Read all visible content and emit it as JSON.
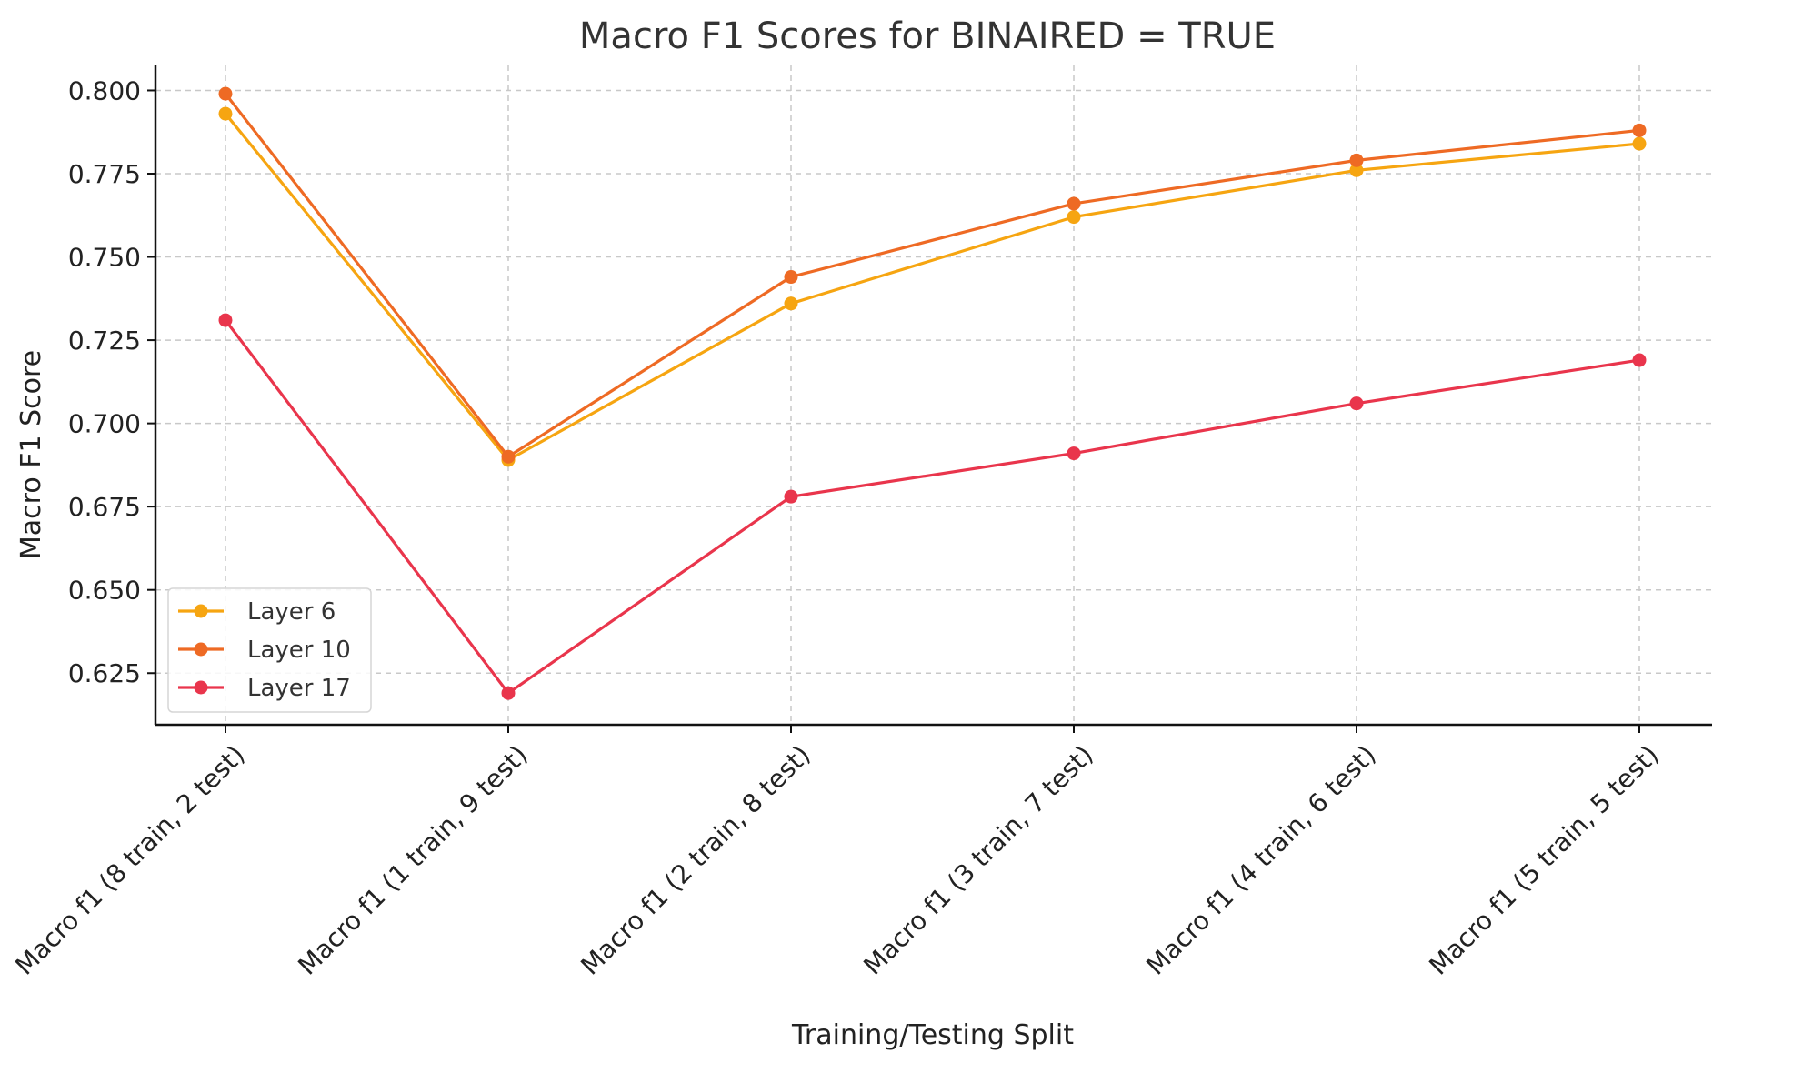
{
  "chart_data": {
    "type": "line",
    "title": "Macro F1 Scores for BINAIRED = TRUE",
    "xlabel": "Training/Testing Split",
    "ylabel": "Macro F1 Score",
    "categories": [
      "Macro f1 (8 train, 2 test)",
      "Macro f1 (1 train, 9 test)",
      "Macro f1 (2 train, 8 test)",
      "Macro f1 (3 train, 7 test)",
      "Macro f1 (4 train, 6 test)",
      "Macro f1 (5 train, 5 test)"
    ],
    "yticks": [
      0.625,
      0.65,
      0.675,
      0.7,
      0.725,
      0.75,
      0.775,
      0.8
    ],
    "ytick_labels": [
      "0.625",
      "0.650",
      "0.675",
      "0.700",
      "0.725",
      "0.750",
      "0.775",
      "0.800"
    ],
    "ylim": [
      0.6095,
      0.8075
    ],
    "grid": true,
    "legend_position": "lower-left",
    "series": [
      {
        "name": "Layer 6",
        "color": "#F6A511",
        "values": [
          0.793,
          0.689,
          0.736,
          0.762,
          0.776,
          0.784
        ]
      },
      {
        "name": "Layer 10",
        "color": "#EE6A24",
        "values": [
          0.799,
          0.69,
          0.744,
          0.766,
          0.779,
          0.788
        ]
      },
      {
        "name": "Layer 17",
        "color": "#E9354C",
        "values": [
          0.731,
          0.619,
          0.678,
          0.691,
          0.706,
          0.719
        ]
      }
    ]
  }
}
